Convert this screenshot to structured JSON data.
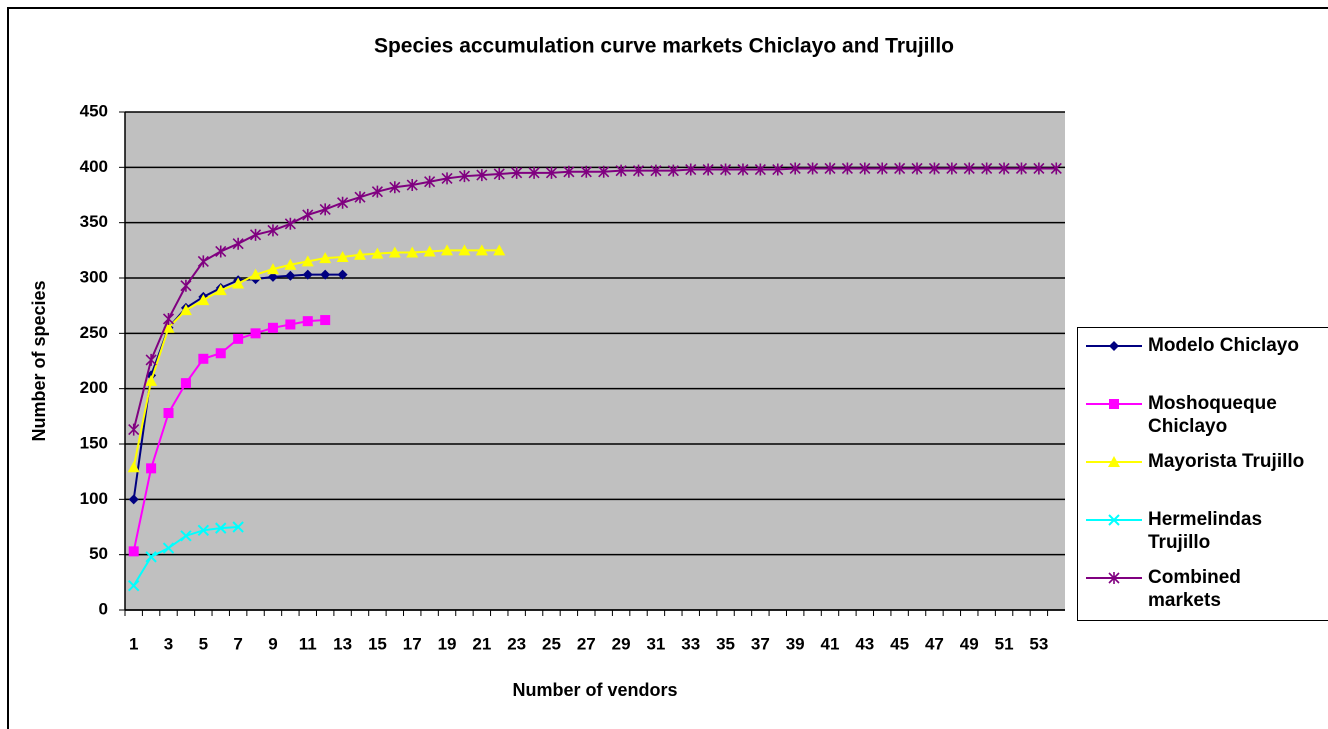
{
  "chart_data": {
    "type": "line",
    "title": "Species accumulation curve markets Chiclayo and Trujillo",
    "x_label": "Number of vendors",
    "y_label": "Number of species",
    "categories": [
      1,
      null,
      3,
      null,
      5,
      null,
      7,
      null,
      9,
      null,
      11,
      null,
      13,
      null,
      15,
      null,
      17,
      null,
      19,
      null,
      21,
      null,
      23,
      null,
      25,
      null,
      27,
      null,
      29,
      null,
      31,
      null,
      33,
      null,
      35,
      null,
      37,
      null,
      39,
      null,
      41,
      null,
      43,
      null,
      45,
      null,
      47,
      null,
      49,
      null,
      51,
      null,
      53,
      null
    ],
    "ylim": [
      0,
      450
    ],
    "yticks": [
      0,
      50,
      100,
      150,
      200,
      250,
      300,
      350,
      400,
      450
    ],
    "grid": true,
    "legend": "right",
    "series": [
      {
        "name": "Modelo Chiclayo",
        "color": "#000080",
        "marker": "diamond",
        "values": [
          100,
          212,
          255,
          273,
          283,
          291,
          298,
          299,
          301,
          302,
          303,
          303,
          303,
          null,
          null,
          null,
          null,
          null,
          null,
          null,
          null,
          null,
          null,
          null,
          null,
          null,
          null,
          null,
          null,
          null,
          null,
          null,
          null,
          null,
          null,
          null,
          null,
          null,
          null,
          null,
          null,
          null,
          null,
          null,
          null,
          null,
          null,
          null,
          null,
          null,
          null,
          null,
          null,
          null
        ]
      },
      {
        "name": "Moshoqueque Chiclayo",
        "color": "#ff00ff",
        "marker": "square",
        "values": [
          53,
          128,
          178,
          205,
          227,
          232,
          245,
          250,
          255,
          258,
          261,
          262,
          null,
          null,
          null,
          null,
          null,
          null,
          null,
          null,
          null,
          null,
          null,
          null,
          null,
          null,
          null,
          null,
          null,
          null,
          null,
          null,
          null,
          null,
          null,
          null,
          null,
          null,
          null,
          null,
          null,
          null,
          null,
          null,
          null,
          null,
          null,
          null,
          null,
          null,
          null,
          null,
          null,
          null
        ]
      },
      {
        "name": "Mayorista Trujillo",
        "color": "#ffff00",
        "marker": "triangle",
        "values": [
          129,
          207,
          255,
          271,
          280,
          289,
          295,
          303,
          308,
          312,
          315,
          318,
          319,
          321,
          322,
          323,
          323,
          324,
          325,
          325,
          325,
          325,
          null,
          null,
          null,
          null,
          null,
          null,
          null,
          null,
          null,
          null,
          null,
          null,
          null,
          null,
          null,
          null,
          null,
          null,
          null,
          null,
          null,
          null,
          null,
          null,
          null,
          null,
          null,
          null,
          null,
          null,
          null,
          null
        ]
      },
      {
        "name": "Hermelindas Trujillo",
        "color": "#00ffff",
        "marker": "x",
        "values": [
          22,
          48,
          56,
          67,
          72,
          74,
          75,
          null,
          null,
          null,
          null,
          null,
          null,
          null,
          null,
          null,
          null,
          null,
          null,
          null,
          null,
          null,
          null,
          null,
          null,
          null,
          null,
          null,
          null,
          null,
          null,
          null,
          null,
          null,
          null,
          null,
          null,
          null,
          null,
          null,
          null,
          null,
          null,
          null,
          null,
          null,
          null,
          null,
          null,
          null,
          null,
          null,
          null,
          null
        ]
      },
      {
        "name": "Combined markets",
        "color": "#800080",
        "marker": "star",
        "values": [
          163,
          226,
          263,
          293,
          315,
          324,
          331,
          339,
          343,
          349,
          357,
          362,
          368,
          373,
          378,
          382,
          384,
          387,
          390,
          392,
          393,
          394,
          395,
          395,
          395,
          396,
          396,
          396,
          397,
          397,
          397,
          397,
          398,
          398,
          398,
          398,
          398,
          398,
          399,
          399,
          399,
          399,
          399,
          399,
          399,
          399,
          399,
          399,
          399,
          399,
          399,
          399,
          399,
          399
        ]
      }
    ]
  }
}
